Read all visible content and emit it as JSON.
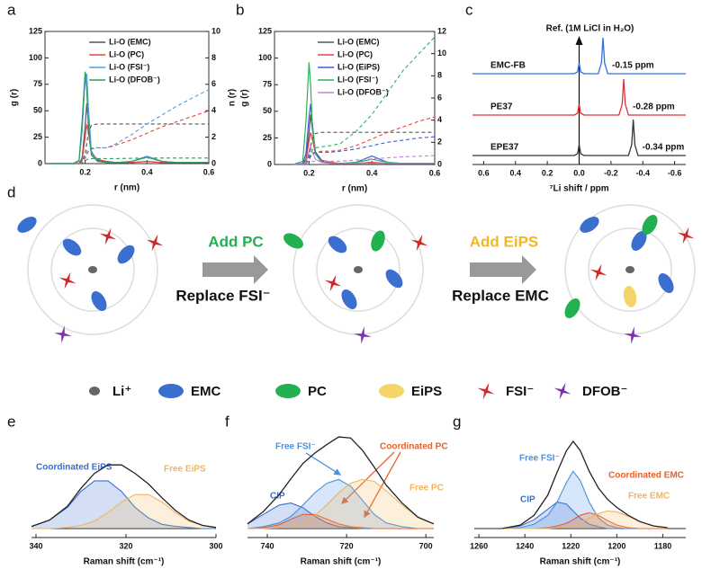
{
  "chart_data": [
    {
      "type": "line",
      "label": "a",
      "xlabel": "r (nm)",
      "ylabel": "g (r)",
      "y2label": "n (r)",
      "xlim": [
        0.07,
        0.6
      ],
      "xticks": [
        0.2,
        0.4,
        0.6
      ],
      "ylim": [
        0,
        125
      ],
      "yticks": [
        0,
        25,
        50,
        75,
        100,
        125
      ],
      "y2lim": [
        0,
        10
      ],
      "y2ticks": [
        0,
        2,
        4,
        6,
        8,
        10
      ],
      "legend": "upper center",
      "x": [
        0.08,
        0.16,
        0.18,
        0.19,
        0.2,
        0.205,
        0.21,
        0.22,
        0.24,
        0.27,
        0.3,
        0.35,
        0.4,
        0.45,
        0.5,
        0.55,
        0.6
      ],
      "series": [
        {
          "name": "Li-O (EMC)",
          "color": "#555555",
          "values": [
            0,
            0,
            0,
            5,
            35,
            57,
            40,
            10,
            3,
            2,
            1,
            1,
            2,
            1,
            1,
            1,
            1
          ]
        },
        {
          "name": "Li-O (PC)",
          "color": "#e8453c",
          "values": [
            0,
            0,
            0,
            3,
            25,
            37,
            30,
            10,
            4,
            2,
            1,
            1,
            2,
            1,
            1,
            1,
            1
          ]
        },
        {
          "name": "Li-O (FSI⁻)",
          "color": "#4a9fe0",
          "values": [
            0,
            0,
            2,
            30,
            80,
            85,
            55,
            12,
            2,
            1,
            1,
            2,
            7,
            2,
            1,
            1,
            1
          ]
        },
        {
          "name": "Li-O (DFOB⁻)",
          "color": "#2e9e5e",
          "values": [
            0,
            0,
            3,
            40,
            87,
            70,
            35,
            8,
            2,
            1,
            1,
            2,
            6,
            2,
            1,
            1,
            1
          ]
        },
        {
          "color": "#555555",
          "dash": true,
          "axis": "y2",
          "values": [
            0,
            0,
            0,
            0.1,
            0.8,
            1.5,
            2.3,
            2.9,
            3,
            3,
            3,
            3,
            3,
            3,
            3,
            3,
            3
          ]
        },
        {
          "color": "#e8453c",
          "dash": true,
          "axis": "y2",
          "values": [
            0,
            0,
            0,
            0.05,
            0.4,
            0.7,
            0.9,
            1.1,
            1.2,
            1.2,
            1.4,
            1.8,
            2.3,
            2.8,
            3.2,
            3.6,
            4
          ]
        },
        {
          "color": "#4a9fe0",
          "dash": true,
          "axis": "y2",
          "values": [
            0,
            0,
            0,
            0.1,
            0.5,
            0.9,
            1.1,
            1.2,
            1.2,
            1.2,
            1.5,
            2.2,
            3,
            3.7,
            4.4,
            5,
            5.6
          ]
        },
        {
          "color": "#2e9e5e",
          "dash": true,
          "axis": "y2",
          "values": [
            0,
            0,
            0,
            0.05,
            0.2,
            0.3,
            0.35,
            0.38,
            0.38,
            0.38,
            0.38,
            0.4,
            0.42,
            0.42,
            0.42,
            0.42,
            0.42
          ]
        }
      ]
    },
    {
      "type": "line",
      "label": "b",
      "xlabel": "r (nm)",
      "ylabel": "g (r)",
      "xlim": [
        0.09,
        0.6
      ],
      "xticks": [
        0.2,
        0.4,
        0.6
      ],
      "ylim": [
        0,
        125
      ],
      "yticks": [
        0,
        25,
        50,
        75,
        100,
        125
      ],
      "y2lim": [
        0,
        12
      ],
      "y2ticks": [
        0,
        2,
        4,
        6,
        8,
        10,
        12
      ],
      "legend": "upper center",
      "x": [
        0.15,
        0.18,
        0.19,
        0.2,
        0.205,
        0.21,
        0.22,
        0.24,
        0.27,
        0.3,
        0.35,
        0.4,
        0.45,
        0.5,
        0.55,
        0.6
      ],
      "series": [
        {
          "name": "Li-O (EMC)",
          "color": "#555555",
          "values": [
            0,
            0,
            5,
            30,
            47,
            35,
            12,
            4,
            2,
            1,
            1,
            2,
            1,
            1,
            1,
            1
          ]
        },
        {
          "name": "Li-O (PC)",
          "color": "#e8453c",
          "values": [
            0,
            0,
            3,
            22,
            30,
            25,
            10,
            4,
            2,
            1,
            1,
            2,
            1,
            1,
            1,
            1
          ]
        },
        {
          "name": "Li-O (EiPS)",
          "color": "#3a5fd8",
          "values": [
            0,
            1,
            10,
            45,
            57,
            40,
            12,
            3,
            1,
            1,
            2,
            8,
            2,
            1,
            1,
            1
          ]
        },
        {
          "name": "Li-O (FSI⁻)",
          "color": "#2eb060",
          "values": [
            0,
            3,
            40,
            96,
            75,
            40,
            10,
            2,
            1,
            1,
            2,
            5,
            2,
            1,
            1,
            1
          ]
        },
        {
          "name": "Li-O (DFOB⁻)",
          "color": "#c080e0",
          "values": [
            0,
            0,
            2,
            12,
            17,
            12,
            5,
            2,
            1,
            1,
            1,
            1,
            1,
            1,
            1,
            1
          ]
        },
        {
          "color": "#555555",
          "dash": true,
          "axis": "y2",
          "values": [
            0,
            0,
            0.05,
            0.8,
            1.6,
            2.3,
            2.8,
            2.9,
            2.9,
            2.9,
            2.9,
            2.9,
            2.9,
            2.9,
            2.9,
            2.9
          ]
        },
        {
          "color": "#e8453c",
          "dash": true,
          "axis": "y2",
          "values": [
            0,
            0,
            0.05,
            0.4,
            0.7,
            0.9,
            1.1,
            1.2,
            1.2,
            1.3,
            1.7,
            2.3,
            2.9,
            3.4,
            3.9,
            4.3
          ]
        },
        {
          "color": "#3a5fd8",
          "dash": true,
          "axis": "y2",
          "values": [
            0,
            0,
            0.1,
            0.5,
            0.8,
            1,
            1.1,
            1.1,
            1.1,
            1.2,
            1.4,
            1.7,
            2,
            2.2,
            2.4,
            2.5
          ]
        },
        {
          "color": "#2eb060",
          "dash": true,
          "axis": "y2",
          "values": [
            0,
            0,
            0.1,
            0.6,
            1,
            1.3,
            1.5,
            1.6,
            1.7,
            1.9,
            3,
            4.5,
            6.5,
            8.5,
            10,
            11.5
          ]
        },
        {
          "color": "#c080e0",
          "dash": true,
          "axis": "y2",
          "values": [
            0,
            0,
            0,
            0.1,
            0.2,
            0.25,
            0.3,
            0.3,
            0.3,
            0.3,
            0.4,
            0.5,
            0.6,
            0.7,
            0.75,
            0.8
          ]
        }
      ]
    },
    {
      "type": "line",
      "label": "c",
      "xlabel": "⁷Li shift / ppm",
      "annotation": "Ref. (1M LiCl in H₂O)",
      "xlim": [
        0.67,
        -0.67
      ],
      "xticks": [
        0.6,
        0.4,
        0.2,
        {
          "value": 0,
          "label": "0.0"
        },
        -0.2,
        -0.4,
        -0.6
      ],
      "series": [
        {
          "name": "EMC-FB",
          "color": "#2f6fe0",
          "peak_label": "-0.15 ppm",
          "x": [
            0.67,
            0.03,
            0.01,
            0,
            -0.01,
            -0.03,
            -0.12,
            -0.14,
            -0.15,
            -0.16,
            -0.18,
            -0.67
          ],
          "values": [
            0,
            0,
            0.05,
            0.3,
            0.05,
            0,
            0,
            0.3,
            1,
            0.3,
            0,
            0
          ]
        },
        {
          "name": "PE37",
          "color": "#e03030",
          "peak_label": "-0.28 ppm",
          "x": [
            0.67,
            0.03,
            0.01,
            0,
            -0.01,
            -0.03,
            -0.25,
            -0.27,
            -0.28,
            -0.29,
            -0.31,
            -0.67
          ],
          "values": [
            0,
            0,
            0.05,
            0.3,
            0.05,
            0,
            0,
            0.3,
            1,
            0.3,
            0,
            0
          ]
        },
        {
          "name": "EPE37",
          "color": "#333333",
          "peak_label": "-0.34 ppm",
          "x": [
            0.67,
            0.03,
            0.01,
            0,
            -0.01,
            -0.03,
            -0.31,
            -0.33,
            -0.34,
            -0.35,
            -0.37,
            -0.67
          ],
          "values": [
            0,
            0,
            0.05,
            0.3,
            0.05,
            0,
            0,
            0.3,
            1,
            0.3,
            0,
            0
          ]
        }
      ]
    },
    {
      "type": "area",
      "label": "e",
      "xlabel": "Raman shift (cm⁻¹)",
      "xlim": [
        341,
        300
      ],
      "xticks": [
        340,
        320,
        300
      ],
      "x": [
        341,
        337,
        333,
        330,
        327,
        324,
        321,
        318,
        315,
        312,
        309,
        306,
        303,
        300
      ],
      "series": [
        {
          "name": "Coordinated EiPS",
          "color": "#3a6fd0",
          "filled": true,
          "values": [
            0.02,
            0.08,
            0.2,
            0.35,
            0.45,
            0.45,
            0.35,
            0.2,
            0.1,
            0.04,
            0.02,
            0.01,
            0,
            0
          ]
        },
        {
          "name": "Free EiPS",
          "color": "#f2b45c",
          "filled": true,
          "values": [
            0,
            0,
            0.01,
            0.03,
            0.07,
            0.15,
            0.25,
            0.32,
            0.32,
            0.25,
            0.15,
            0.07,
            0.03,
            0.01
          ]
        },
        {
          "color": "#222222",
          "values": [
            0.02,
            0.08,
            0.21,
            0.38,
            0.52,
            0.6,
            0.6,
            0.52,
            0.42,
            0.29,
            0.17,
            0.08,
            0.03,
            0.01
          ]
        }
      ]
    },
    {
      "type": "area",
      "label": "f",
      "xlabel": "Raman shift (cm⁻¹)",
      "xlim": [
        745,
        698
      ],
      "xticks": [
        740,
        720,
        700
      ],
      "x": [
        745,
        741,
        737,
        734,
        731,
        728,
        725,
        722,
        719,
        716,
        713,
        710,
        706,
        702,
        698
      ],
      "series": [
        {
          "name": "CIP",
          "color": "#3a6fd0",
          "filled": true,
          "values": [
            0.05,
            0.15,
            0.25,
            0.27,
            0.22,
            0.13,
            0.06,
            0.02,
            0.01,
            0,
            0,
            0,
            0,
            0,
            0
          ]
        },
        {
          "name": "Free FSI⁻",
          "color": "#4a8fe0",
          "filled": true,
          "values": [
            0,
            0.02,
            0.06,
            0.13,
            0.25,
            0.38,
            0.48,
            0.52,
            0.45,
            0.3,
            0.15,
            0.06,
            0.02,
            0,
            0
          ]
        },
        {
          "name": "Coordinated PC",
          "color": "#e8602a",
          "filled": true,
          "values": [
            0,
            0.01,
            0.04,
            0.1,
            0.15,
            0.15,
            0.1,
            0.05,
            0.02,
            0.01,
            0,
            0,
            0,
            0,
            0
          ]
        },
        {
          "name": "Free PC",
          "color": "#f2b45c",
          "filled": true,
          "values": [
            0,
            0,
            0.01,
            0.03,
            0.07,
            0.14,
            0.25,
            0.38,
            0.48,
            0.52,
            0.5,
            0.4,
            0.25,
            0.12,
            0.05
          ]
        },
        {
          "color": "#222222",
          "values": [
            0.05,
            0.18,
            0.36,
            0.53,
            0.69,
            0.8,
            0.89,
            0.97,
            0.96,
            0.83,
            0.65,
            0.46,
            0.27,
            0.12,
            0.05
          ]
        }
      ]
    },
    {
      "type": "area",
      "label": "g",
      "xlabel": "Raman shift (cm⁻¹)",
      "xlim": [
        1262,
        1170
      ],
      "xticks": [
        1260,
        1240,
        1220,
        1200,
        1180
      ],
      "x": [
        1250,
        1242,
        1236,
        1230,
        1226,
        1222,
        1219,
        1216,
        1212,
        1208,
        1204,
        1200,
        1195,
        1190,
        1184,
        1178
      ],
      "series": [
        {
          "name": "CIP",
          "color": "#3a6fd0",
          "filled": true,
          "values": [
            0,
            0.03,
            0.1,
            0.22,
            0.3,
            0.28,
            0.2,
            0.12,
            0.05,
            0.02,
            0,
            0,
            0,
            0,
            0,
            0
          ]
        },
        {
          "name": "Free FSI⁻",
          "color": "#4a8fe0",
          "filled": true,
          "values": [
            0,
            0.01,
            0.05,
            0.15,
            0.3,
            0.52,
            0.65,
            0.55,
            0.3,
            0.12,
            0.04,
            0.01,
            0,
            0,
            0,
            0
          ]
        },
        {
          "name": "Coordinated EMC",
          "color": "#e8602a",
          "filled": true,
          "values": [
            0,
            0,
            0,
            0.01,
            0.03,
            0.06,
            0.1,
            0.15,
            0.18,
            0.15,
            0.09,
            0.04,
            0.01,
            0,
            0,
            0
          ]
        },
        {
          "name": "Free EMC",
          "color": "#f2b45c",
          "filled": true,
          "values": [
            0,
            0,
            0,
            0,
            0.01,
            0.02,
            0.04,
            0.07,
            0.12,
            0.17,
            0.2,
            0.19,
            0.14,
            0.08,
            0.03,
            0.01
          ]
        },
        {
          "color": "#222222",
          "values": [
            0,
            0.04,
            0.15,
            0.38,
            0.64,
            0.88,
            0.99,
            0.89,
            0.65,
            0.46,
            0.33,
            0.24,
            0.15,
            0.08,
            0.03,
            0.01
          ]
        }
      ]
    }
  ],
  "diagram": {
    "label": "d",
    "steps": [
      {
        "add": "Add PC",
        "replace": "Replace FSI⁻"
      },
      {
        "add": "Add EiPS",
        "replace": "Replace EMC"
      }
    ],
    "legend": [
      "Li⁺",
      "EMC",
      "PC",
      "EiPS",
      "FSI⁻",
      "DFOB⁻"
    ]
  }
}
